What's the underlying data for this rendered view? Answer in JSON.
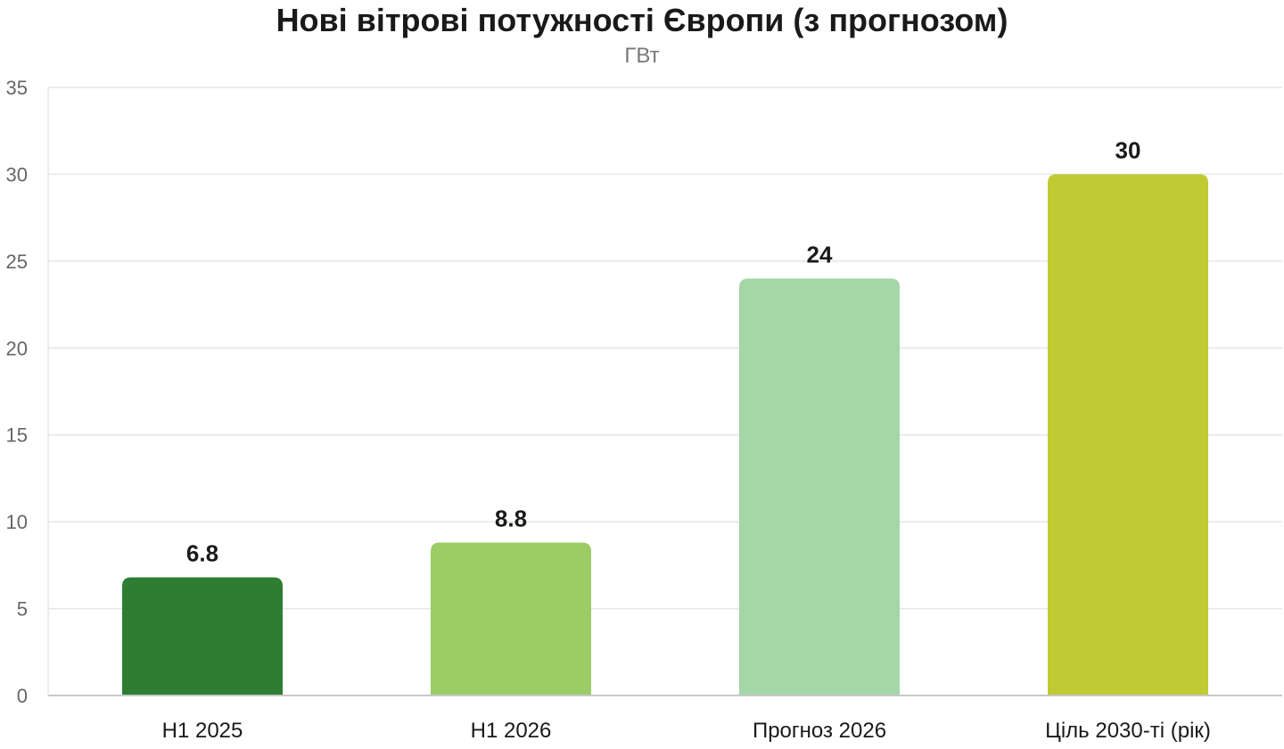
{
  "chart_data": {
    "type": "bar",
    "title": "Нові вітрові потужності Європи (з прогнозом)",
    "subtitle": "ГВт",
    "xlabel": "",
    "ylabel": "",
    "categories": [
      "H1 2025",
      "H1 2026",
      "Прогноз 2026",
      "Ціль 2030-ті (рік)"
    ],
    "values": [
      6.8,
      8.8,
      24,
      30
    ],
    "data_labels": [
      "6.8",
      "8.8",
      "24",
      "30"
    ],
    "colors": [
      "#2e7d32",
      "#9ccc65",
      "#a5d6a7",
      "#c0ca33"
    ],
    "ylim": [
      0,
      35
    ],
    "yticks": [
      0,
      5,
      10,
      15,
      20,
      25,
      30,
      35
    ],
    "grid": true,
    "legend": "none"
  }
}
